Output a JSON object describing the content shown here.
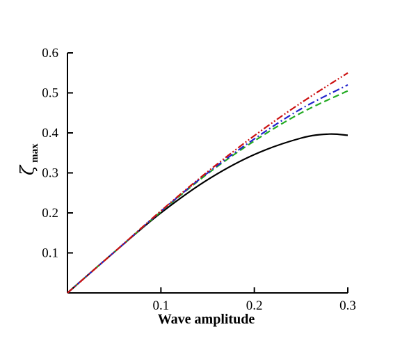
{
  "chart_data": {
    "type": "line",
    "xlabel": "Wave amplitude",
    "ylabel": "ζ",
    "ylabel_subscript": "max",
    "xlim": [
      0,
      0.3
    ],
    "ylim": [
      0,
      0.6
    ],
    "x_ticks": [
      0.1,
      0.2,
      0.3
    ],
    "x_tick_labels": [
      "0.1",
      "0.2",
      "0.3"
    ],
    "y_ticks": [
      0.1,
      0.2,
      0.3,
      0.4,
      0.5,
      0.6
    ],
    "y_tick_labels": [
      "0.1",
      "0.2",
      "0.3",
      "0.4",
      "0.5",
      "0.6"
    ],
    "grid": false,
    "legend": "none",
    "series": [
      {
        "color": "#000000",
        "style": "solid",
        "x": [
          0,
          0.05,
          0.1,
          0.15,
          0.2,
          0.25,
          0.28,
          0.3
        ],
        "y": [
          0,
          0.102,
          0.2,
          0.283,
          0.346,
          0.387,
          0.397,
          0.394
        ]
      },
      {
        "color": "#22aa22",
        "style": "dashed",
        "x": [
          0,
          0.05,
          0.1,
          0.15,
          0.2,
          0.25,
          0.3
        ],
        "y": [
          0,
          0.102,
          0.203,
          0.298,
          0.38,
          0.45,
          0.505
        ]
      },
      {
        "color": "#2222cc",
        "style": "dashdot",
        "x": [
          0,
          0.05,
          0.1,
          0.15,
          0.2,
          0.25,
          0.3
        ],
        "y": [
          0,
          0.102,
          0.204,
          0.3,
          0.385,
          0.46,
          0.52
        ]
      },
      {
        "color": "#cc1111",
        "style": "dashdotdot",
        "x": [
          0,
          0.05,
          0.1,
          0.15,
          0.2,
          0.25,
          0.3
        ],
        "y": [
          0,
          0.102,
          0.205,
          0.303,
          0.393,
          0.475,
          0.55
        ]
      }
    ]
  }
}
